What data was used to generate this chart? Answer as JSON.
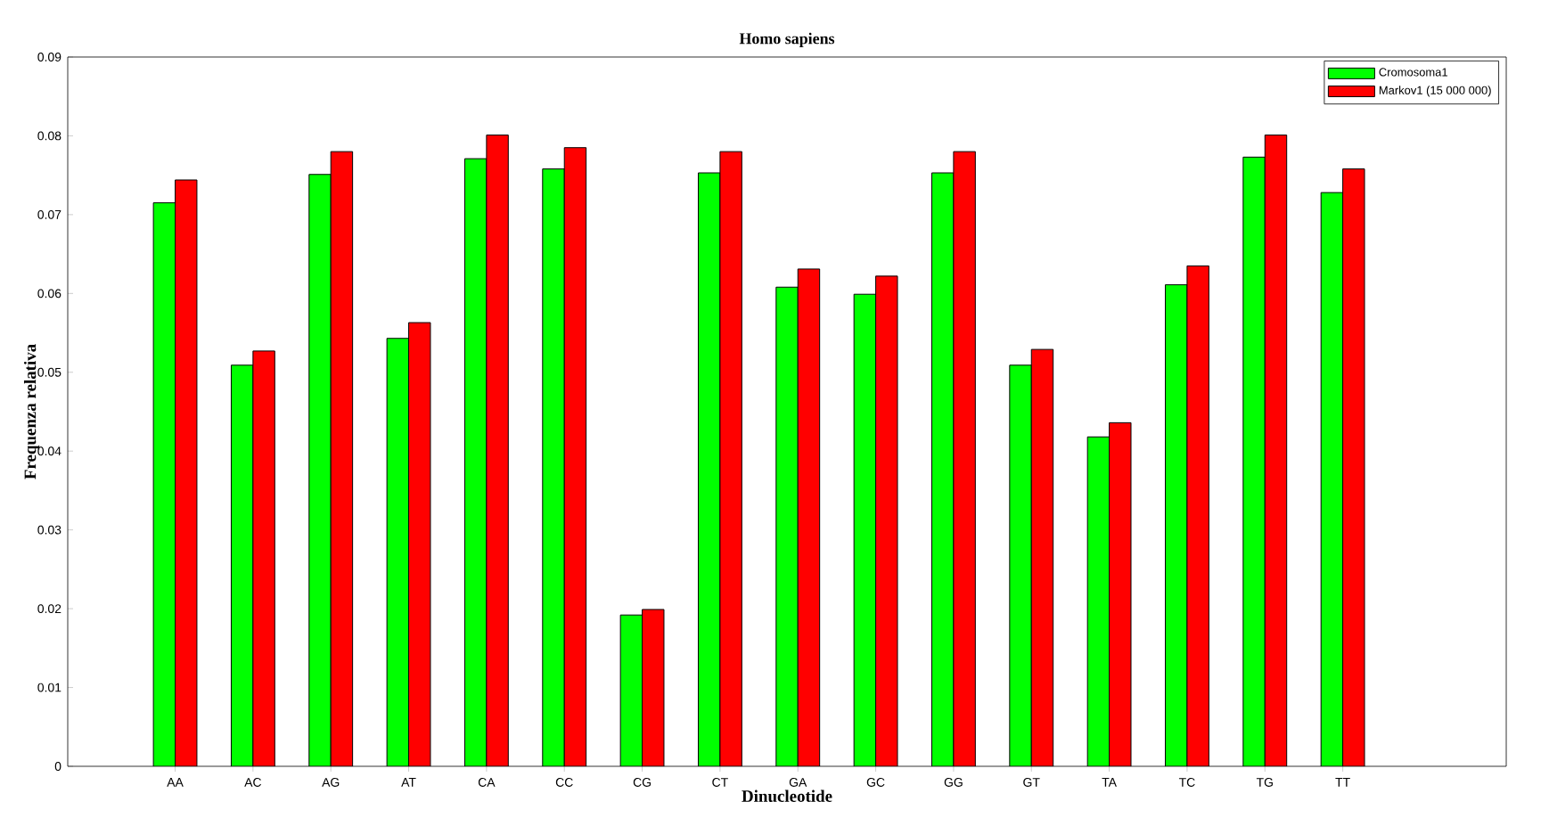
{
  "chart_data": {
    "type": "bar",
    "title": "Homo sapiens",
    "xlabel": "Dinucleotide",
    "ylabel": "Frequenza relativa",
    "categories": [
      "AA",
      "AC",
      "AG",
      "AT",
      "CA",
      "CC",
      "CG",
      "CT",
      "GA",
      "GC",
      "GG",
      "GT",
      "TA",
      "TC",
      "TG",
      "TT"
    ],
    "series": [
      {
        "name": "Cromosoma1",
        "color": "#00ff00",
        "values": [
          0.0715,
          0.0509,
          0.0751,
          0.0543,
          0.0771,
          0.0758,
          0.0192,
          0.0753,
          0.0608,
          0.0599,
          0.0753,
          0.0509,
          0.0418,
          0.0611,
          0.0773,
          0.0728
        ]
      },
      {
        "name": "Markov1 (15 000 000)",
        "color": "#ff0000",
        "values": [
          0.0744,
          0.0527,
          0.078,
          0.0563,
          0.0801,
          0.0785,
          0.0199,
          0.078,
          0.0631,
          0.0622,
          0.078,
          0.0529,
          0.0436,
          0.0635,
          0.0801,
          0.0758
        ]
      }
    ],
    "ylim": [
      0,
      0.09
    ],
    "yticks": [
      0,
      0.01,
      0.02,
      0.03,
      0.04,
      0.05,
      0.06,
      0.07,
      0.08,
      0.09
    ],
    "legend": "top right",
    "grid": false
  }
}
